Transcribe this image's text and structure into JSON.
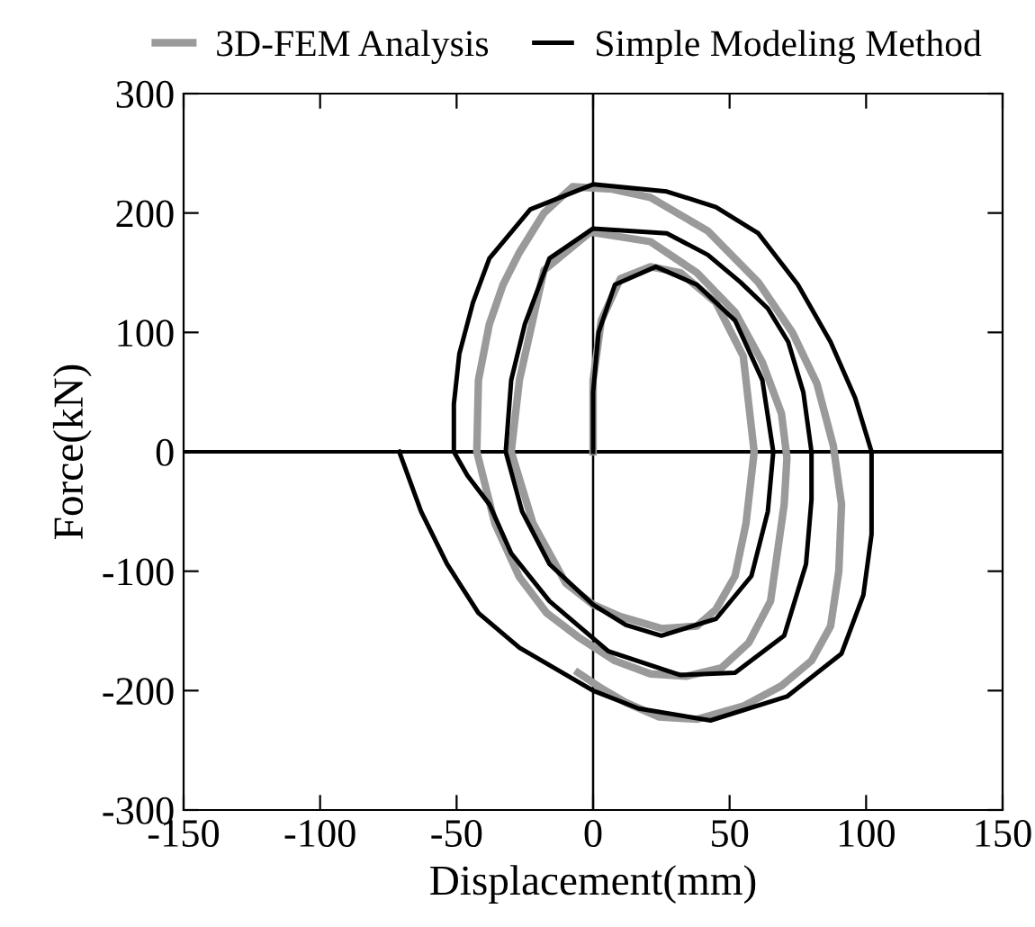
{
  "chart_data": {
    "type": "line",
    "xlabel": "Displacement(mm)",
    "ylabel": "Force(kN)",
    "xlim": [
      -150,
      150
    ],
    "ylim": [
      -300,
      300
    ],
    "xticks": [
      -150,
      -100,
      -50,
      0,
      50,
      100,
      150
    ],
    "yticks": [
      -300,
      -200,
      -100,
      0,
      100,
      200,
      300
    ],
    "grid": false,
    "legend": "top",
    "marker": "none",
    "line_style": "solid",
    "ref_lines": [
      {
        "axis": "x",
        "value": 0,
        "color": "#000000"
      },
      {
        "axis": "y",
        "value": 0,
        "color": "#000000"
      }
    ],
    "series": [
      {
        "name": "3D-FEM Analysis",
        "color": "#9a9a9a",
        "x": [
          0,
          0,
          3,
          10,
          21,
          32,
          45,
          55,
          59,
          56,
          52,
          45,
          38,
          25,
          10,
          0,
          -10,
          -22,
          -30,
          -27,
          -18,
          -1,
          21,
          38,
          52,
          62,
          69,
          71,
          70,
          65,
          57,
          47,
          34,
          21,
          8,
          -5.5,
          -17,
          -27,
          -36,
          -42.6,
          -42,
          -38,
          -33,
          -27,
          -18,
          -7.5,
          7,
          21,
          42,
          60.5,
          73,
          82,
          88,
          91,
          90,
          87,
          80,
          69,
          55,
          38,
          24,
          12,
          3,
          -5.5
        ],
        "values": [
          0,
          60,
          110,
          145,
          155,
          150,
          125,
          80,
          0,
          -60,
          -104,
          -132,
          -146,
          -148,
          -138,
          -128,
          -110,
          -60,
          0,
          60,
          152,
          184,
          176,
          150,
          117,
          75,
          32,
          -5,
          -44,
          -125,
          -160,
          -181,
          -188,
          -186,
          -175,
          -155,
          -135,
          -105,
          -60,
          0,
          60,
          107,
          140,
          167,
          200,
          222,
          220,
          213,
          185,
          142,
          100,
          57,
          5,
          -44,
          -100,
          -146,
          -175,
          -196,
          -213,
          -224,
          -222,
          -210,
          -198,
          -185
        ]
      },
      {
        "name": "Simple Modeling Method",
        "color": "#000000",
        "x": [
          0,
          0,
          2,
          8,
          23,
          38,
          52,
          62,
          66,
          64,
          58,
          45,
          25,
          12,
          0,
          -16,
          -26,
          -32,
          -30,
          -25,
          -16,
          0,
          27,
          42,
          54,
          64,
          71.5,
          77,
          80,
          80,
          78,
          70,
          52,
          32,
          5.6,
          -16,
          -30,
          -38,
          -46,
          -51,
          -51,
          -49,
          -44,
          -38,
          -23,
          0,
          27,
          45,
          60.5,
          75,
          87,
          96,
          102,
          102,
          99,
          91,
          71,
          43,
          16.7,
          0,
          -27,
          -42,
          -53.5,
          -63,
          -71
        ],
        "values": [
          0,
          50,
          100,
          140,
          155,
          140,
          110,
          60,
          0,
          -50,
          -104,
          -140,
          -154,
          -145,
          -128,
          -94,
          -50,
          0,
          60,
          107,
          162,
          187,
          183,
          165,
          142,
          120,
          92,
          50,
          0,
          -40,
          -94,
          -154,
          -185,
          -187,
          -167,
          -125,
          -85,
          -44,
          -20,
          0,
          40,
          82,
          125,
          162,
          203,
          224,
          218,
          205,
          183,
          140,
          92,
          45,
          0,
          -69,
          -120,
          -169,
          -205,
          -225,
          -215,
          -200,
          -164,
          -135,
          -94,
          -50,
          0
        ]
      }
    ]
  }
}
